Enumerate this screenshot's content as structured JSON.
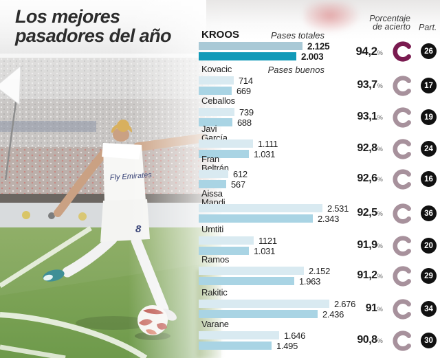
{
  "title": {
    "line1": "Los mejores",
    "line2": "pasadores del año"
  },
  "column_headers": {
    "accuracy_line1": "Porcentaje",
    "accuracy_line2": "de acierto",
    "participation": "Part."
  },
  "legend": {
    "total_label": "Pases totales",
    "good_label": "Pases buenos"
  },
  "photo": {
    "jersey_text": "Fly Emirates",
    "short_number": "8"
  },
  "colors": {
    "highlight_bar_total": "#a9c9d6",
    "highlight_bar_good": "#129ab8",
    "bar_total": "#d9eaf1",
    "bar_good": "#a9d4e4",
    "donut_highlight": "#7a1b50",
    "donut": "#a7919c",
    "badge_bg": "#111111",
    "pct_symbol": "#8f8f8f"
  },
  "chart_data": {
    "type": "bar",
    "orientation": "horizontal",
    "title": "Los mejores pasadores del año",
    "series": [
      {
        "name": "Pases totales"
      },
      {
        "name": "Pases buenos"
      }
    ],
    "x_max": 2676,
    "players": [
      {
        "name": "KROOS",
        "highlight": true,
        "pases_totales": 2125,
        "pases_totales_label": "2.125",
        "pases_buenos": 2003,
        "pases_buenos_label": "2.003",
        "porcentaje": "94,2",
        "porcentaje_value": 94.2,
        "partidos": 26
      },
      {
        "name": "Kovacic",
        "pases_totales": 714,
        "pases_totales_label": "714",
        "pases_buenos": 669,
        "pases_buenos_label": "669",
        "porcentaje": "93,7",
        "porcentaje_value": 93.7,
        "partidos": 17
      },
      {
        "name": "Ceballos",
        "pases_totales": 739,
        "pases_totales_label": "739",
        "pases_buenos": 688,
        "pases_buenos_label": "688",
        "porcentaje": "93,1",
        "porcentaje_value": 93.1,
        "partidos": 19
      },
      {
        "name": "Javi García",
        "name_lines": [
          "Javi",
          "García"
        ],
        "pases_totales": 1111,
        "pases_totales_label": "1.111",
        "pases_buenos": 1031,
        "pases_buenos_label": "1.031",
        "porcentaje": "92,8",
        "porcentaje_value": 92.8,
        "partidos": 24
      },
      {
        "name": "Fran Beltrán",
        "name_lines": [
          "Fran",
          "Beltrán"
        ],
        "pases_totales": 612,
        "pases_totales_label": "612",
        "pases_buenos": 567,
        "pases_buenos_label": "567",
        "porcentaje": "92,6",
        "porcentaje_value": 92.6,
        "partidos": 16
      },
      {
        "name": "Aissa Mandi",
        "name_lines": [
          "Aissa",
          "Mandi"
        ],
        "pases_totales": 2531,
        "pases_totales_label": "2.531",
        "pases_buenos": 2343,
        "pases_buenos_label": "2.343",
        "porcentaje": "92,5",
        "porcentaje_value": 92.5,
        "partidos": 36
      },
      {
        "name": "Umtiti",
        "pases_totales": 1121,
        "pases_totales_label": "1121",
        "pases_buenos": 1031,
        "pases_buenos_label": "1.031",
        "porcentaje": "91,9",
        "porcentaje_value": 91.9,
        "partidos": 20
      },
      {
        "name": "Ramos",
        "pases_totales": 2152,
        "pases_totales_label": "2.152",
        "pases_buenos": 1963,
        "pases_buenos_label": "1.963",
        "porcentaje": "91,2",
        "porcentaje_value": 91.2,
        "partidos": 29
      },
      {
        "name": "Rakitic",
        "pases_totales": 2676,
        "pases_totales_label": "2.676",
        "pases_buenos": 2436,
        "pases_buenos_label": "2.436",
        "porcentaje": "91",
        "porcentaje_value": 91.0,
        "partidos": 34
      },
      {
        "name": "Varane",
        "pases_totales": 1646,
        "pases_totales_label": "1.646",
        "pases_buenos": 1495,
        "pases_buenos_label": "1.495",
        "porcentaje": "90,8",
        "porcentaje_value": 90.8,
        "partidos": 30
      }
    ]
  }
}
